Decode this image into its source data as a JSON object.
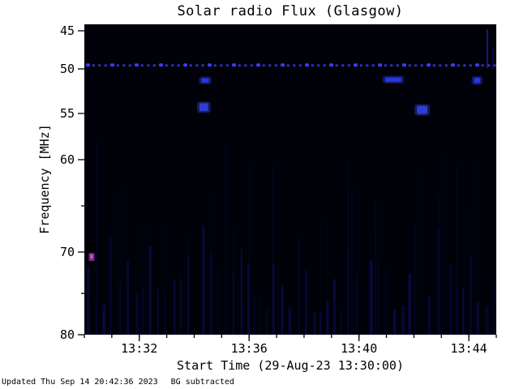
{
  "footer": {
    "updated": "Updated Thu Sep 14 20:42:36 2023",
    "bg_note": "BG subtracted"
  },
  "chart_data": {
    "type": "heatmap",
    "title": "Solar radio Flux (Glasgow)",
    "xlabel": "Start Time (29-Aug-23 13:30:00)",
    "ylabel": "Frequency [MHz]",
    "x_range_minutes": [
      0,
      15
    ],
    "x_start_time": "13:30",
    "x_ticks": [
      {
        "label": "13:32",
        "minutes": 2
      },
      {
        "label": "13:36",
        "minutes": 6
      },
      {
        "label": "13:40",
        "minutes": 10
      },
      {
        "label": "13:44",
        "minutes": 14
      }
    ],
    "x_minor_step_minutes": 1,
    "y_ticks": [
      45,
      50,
      55,
      60,
      70,
      80
    ],
    "y_minor_ticks": [
      65,
      75
    ],
    "y_range_mhz": [
      45,
      80
    ],
    "y_axis_inverted": true,
    "plot_background": "#01010a",
    "features": {
      "rfi_dotted_line": {
        "frequency_mhz": 49.5,
        "color": "#3c3cf0",
        "description": "persistent dotted narrowband line across full time range"
      },
      "blobs": [
        {
          "t_min": 4.4,
          "f_mhz": 51.3,
          "w_min": 0.28,
          "h_mhz": 0.5,
          "color": "#2a3ae0"
        },
        {
          "t_min": 4.35,
          "f_mhz": 54.3,
          "w_min": 0.32,
          "h_mhz": 0.9,
          "color": "#3040d8"
        },
        {
          "t_min": 11.25,
          "f_mhz": 51.2,
          "w_min": 0.6,
          "h_mhz": 0.5,
          "color": "#2a3ae0"
        },
        {
          "t_min": 12.3,
          "f_mhz": 54.6,
          "w_min": 0.38,
          "h_mhz": 0.9,
          "color": "#3040d8"
        },
        {
          "t_min": 14.3,
          "f_mhz": 51.3,
          "w_min": 0.22,
          "h_mhz": 0.6,
          "color": "#2a3ae0"
        }
      ],
      "point_burst": {
        "t_min": 0.25,
        "f_mhz": 70.6,
        "color": "#d94fd9"
      },
      "noise": {
        "color": "#2020c0",
        "region": "faint vertical striping, strongest below 70 MHz"
      }
    }
  }
}
